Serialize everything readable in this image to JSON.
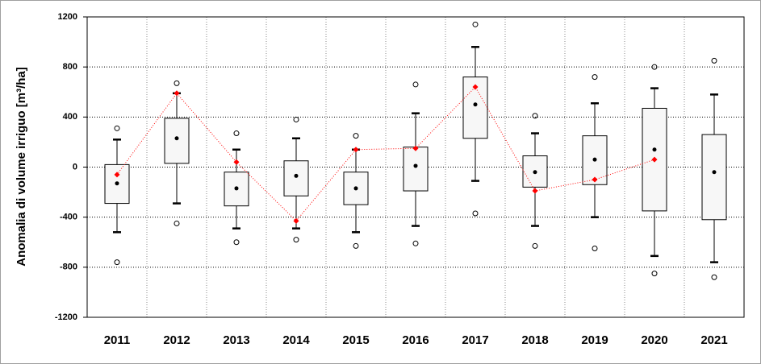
{
  "chart_data": {
    "type": "box",
    "y_label": "Anomalia di volume irriguo [m³/ha]",
    "categories": [
      "2011",
      "2012",
      "2013",
      "2014",
      "2015",
      "2016",
      "2017",
      "2018",
      "2019",
      "2020",
      "2021"
    ],
    "whisker_low": [
      -520,
      -290,
      -490,
      -490,
      -520,
      -470,
      -110,
      -470,
      -400,
      -710,
      -760
    ],
    "q1": [
      -290,
      30,
      -310,
      -230,
      -300,
      -190,
      230,
      -160,
      -140,
      -350,
      -420
    ],
    "q3": [
      20,
      390,
      -40,
      50,
      -40,
      160,
      720,
      90,
      250,
      470,
      260
    ],
    "whisker_high": [
      220,
      590,
      140,
      230,
      140,
      430,
      960,
      270,
      510,
      630,
      580
    ],
    "mean": [
      -130,
      230,
      -170,
      -70,
      -170,
      10,
      500,
      -40,
      60,
      140,
      -40
    ],
    "outliers": [
      [
        310,
        -760
      ],
      [
        670,
        -450
      ],
      [
        270,
        -600
      ],
      [
        380,
        -580
      ],
      [
        250,
        -630
      ],
      [
        660,
        -610
      ],
      [
        1140,
        -370
      ],
      [
        410,
        -630
      ],
      [
        720,
        -650
      ],
      [
        800,
        -850
      ],
      [
        850,
        -880
      ]
    ],
    "box_color": "#f7f7f7",
    "line_values": [
      -60,
      590,
      40,
      -430,
      140,
      150,
      640,
      -190,
      -100,
      60,
      null
    ],
    "line_color": "#ff0000",
    "ylim": [
      -1200,
      1200
    ],
    "yticks": [
      -1200,
      -800,
      -400,
      0,
      400,
      800,
      1200
    ],
    "grid": true
  }
}
